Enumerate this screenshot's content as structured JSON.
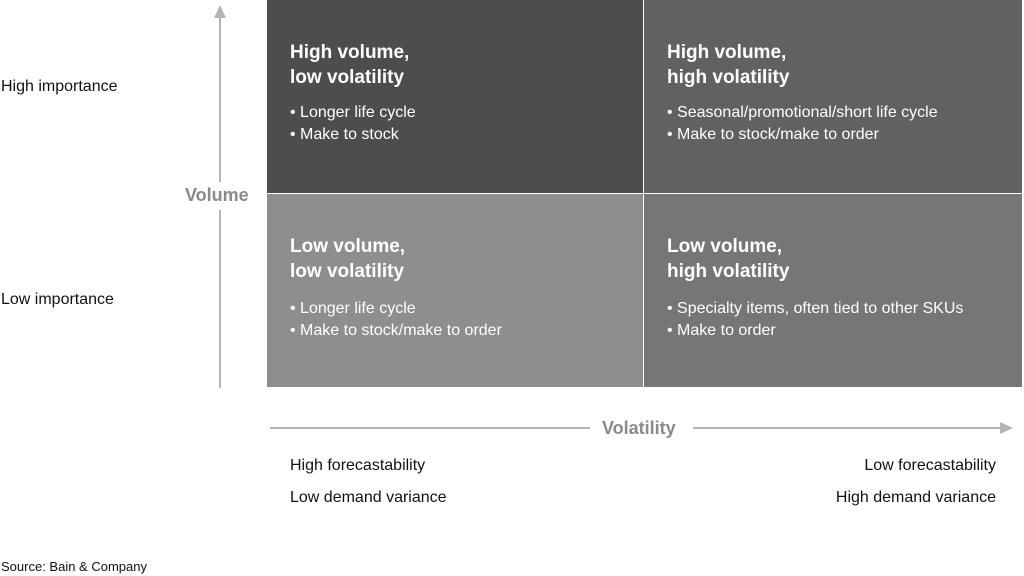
{
  "rows": {
    "top_label": "High importance",
    "bottom_label": "Low importance"
  },
  "axes": {
    "y_label": "Volume",
    "x_label": "Volatility"
  },
  "quadrants": {
    "top_left": {
      "title_line1": "High volume,",
      "title_line2": "low volatility",
      "bullets": [
        "Longer life cycle",
        "Make to stock"
      ],
      "color": "#4d4d4d"
    },
    "top_right": {
      "title_line1": "High volume,",
      "title_line2": "high volatility",
      "bullets": [
        "Seasonal/promotional/short life cycle",
        "Make to stock/make to order"
      ],
      "color": "#616161"
    },
    "bottom_left": {
      "title_line1": "Low volume,",
      "title_line2": "low volatility",
      "bullets": [
        "Longer life cycle",
        "Make to stock/make to order"
      ],
      "color": "#8e8e8e"
    },
    "bottom_right": {
      "title_line1": "Low volume,",
      "title_line2": "high volatility",
      "bullets": [
        "Specialty items, often tied to other SKUs",
        "Make to order"
      ],
      "color": "#767676"
    }
  },
  "bottom": {
    "left_line1": "High forecastability",
    "left_line2": "Low demand variance",
    "right_line1": "Low forecastability",
    "right_line2": "High demand variance"
  },
  "source": "Source: Bain & Company"
}
